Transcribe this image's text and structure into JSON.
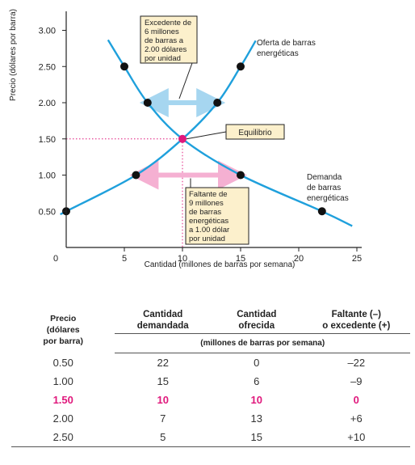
{
  "chart_data": {
    "type": "line",
    "xlabel": "Cantidad (millones de barras por semana)",
    "ylabel": "Precio (dólares por barra)",
    "xlim": [
      0,
      25
    ],
    "ylim": [
      0,
      3.25
    ],
    "x_ticks": [
      "0",
      "5",
      "10",
      "15",
      "20",
      "25"
    ],
    "y_ticks": [
      "0.50",
      "1.00",
      "1.50",
      "2.00",
      "2.50",
      "3.00"
    ],
    "series": [
      {
        "name": "Oferta de barras energéticas",
        "points": [
          [
            0,
            0.5
          ],
          [
            6,
            1.0
          ],
          [
            10,
            1.5
          ],
          [
            13,
            2.0
          ],
          [
            15,
            2.5
          ]
        ]
      },
      {
        "name": "Demanda de barras energéticas",
        "points": [
          [
            5,
            2.5
          ],
          [
            7,
            2.0
          ],
          [
            10,
            1.5
          ],
          [
            15,
            1.0
          ],
          [
            22,
            0.5
          ]
        ]
      }
    ],
    "equilibrium": {
      "x": 10,
      "y": 1.5,
      "label": "Equilibrio"
    },
    "surplus": {
      "text": [
        "Excedente de",
        "6 millones",
        "de barras a",
        "2.00 dólares",
        "por unidad"
      ],
      "from": 7,
      "to": 13,
      "price": 2.0
    },
    "shortage": {
      "text": [
        "Faltante de",
        "9 millones",
        "de barras",
        "energéticas",
        "a 1.00 dólar",
        "por unidad"
      ],
      "from": 6,
      "to": 15,
      "price": 1.0
    },
    "colors": {
      "curve": "#1fa0dc",
      "equilibrium": "#e0187c",
      "surplus_arrow": "#a6d6f0",
      "shortage_arrow": "#f5b0d2",
      "note_bg": "#fcf0cc",
      "axis": "#222222"
    }
  },
  "table": {
    "headers": {
      "price": [
        "Precio",
        "(dólares",
        "por barra)"
      ],
      "qd": [
        "Cantidad",
        "demandada"
      ],
      "qs": [
        "Cantidad",
        "ofrecida"
      ],
      "gap": [
        "Faltante (–)",
        "o excedente (+)"
      ],
      "units": "(millones de barras por semana)"
    },
    "rows": [
      {
        "price": "0.50",
        "qd": "22",
        "qs": "0",
        "gap": "–22",
        "eq": false
      },
      {
        "price": "1.00",
        "qd": "15",
        "qs": "6",
        "gap": "–9",
        "eq": false
      },
      {
        "price": "1.50",
        "qd": "10",
        "qs": "10",
        "gap": "0",
        "eq": true
      },
      {
        "price": "2.00",
        "qd": "7",
        "qs": "13",
        "gap": "+6",
        "eq": false
      },
      {
        "price": "2.50",
        "qd": "5",
        "qs": "15",
        "gap": "+10",
        "eq": false
      }
    ]
  }
}
